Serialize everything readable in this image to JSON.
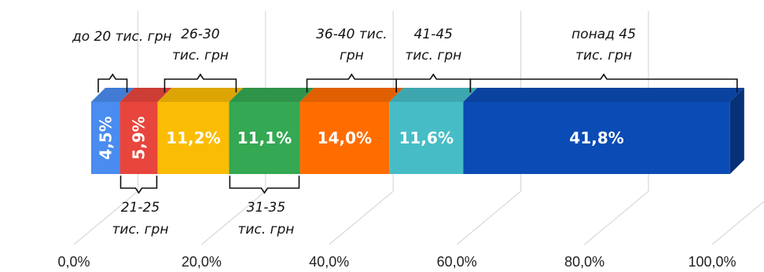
{
  "chart_data": {
    "type": "bar",
    "orientation": "horizontal-stacked-100",
    "style": "3d",
    "categories": [
      ""
    ],
    "xlim": [
      0,
      100
    ],
    "x_ticks": [
      0,
      20,
      40,
      60,
      80,
      100
    ],
    "x_tick_labels": [
      "0,0%",
      "20,0%",
      "40,0%",
      "60,0%",
      "80,0%",
      "100,0%"
    ],
    "grid": true,
    "legend": "none",
    "series": [
      {
        "label": "до 20 тис. грн",
        "value": 4.5,
        "value_label": "4,5%",
        "color": "#4a8cf0",
        "label_vertical": true,
        "annotation_side": "top"
      },
      {
        "label": "21-25 тис. грн",
        "value": 5.9,
        "value_label": "5,9%",
        "color": "#e8453c",
        "label_vertical": true,
        "annotation_side": "bottom"
      },
      {
        "label": "26-30 тис. грн",
        "value": 11.2,
        "value_label": "11,2%",
        "color": "#fbbc04",
        "label_vertical": false,
        "annotation_side": "top"
      },
      {
        "label": "31-35 тис. грн",
        "value": 11.1,
        "value_label": "11,1%",
        "color": "#34a853",
        "label_vertical": false,
        "annotation_side": "bottom"
      },
      {
        "label": "36-40 тис. грн",
        "value": 14.0,
        "value_label": "14,0%",
        "color": "#ff6d01",
        "label_vertical": false,
        "annotation_side": "top"
      },
      {
        "label": "41-45 тис. грн",
        "value": 11.6,
        "value_label": "11,6%",
        "color": "#46bdc6",
        "label_vertical": false,
        "annotation_side": "top"
      },
      {
        "label": "понад 45 тис. грн",
        "value": 41.8,
        "value_label": "41,8%",
        "color": "#0b4bb5",
        "label_vertical": false,
        "annotation_side": "top"
      }
    ],
    "annotation_lines": {
      "до 20 тис. грн": [
        "до 20 тис. грн"
      ],
      "21-25 тис. грн": [
        "21-25",
        "тис. грн"
      ],
      "26-30 тис. грн": [
        "26-30",
        "тис. грн"
      ],
      "31-35 тис. грн": [
        "31-35",
        "тис. грн"
      ],
      "36-40 тис. грн": [
        "36-40 тис.",
        "грн"
      ],
      "41-45 тис. грн": [
        "41-45",
        "тис. грн"
      ],
      "понад 45 тис. грн": [
        "понад 45",
        "тис. грн"
      ]
    }
  }
}
